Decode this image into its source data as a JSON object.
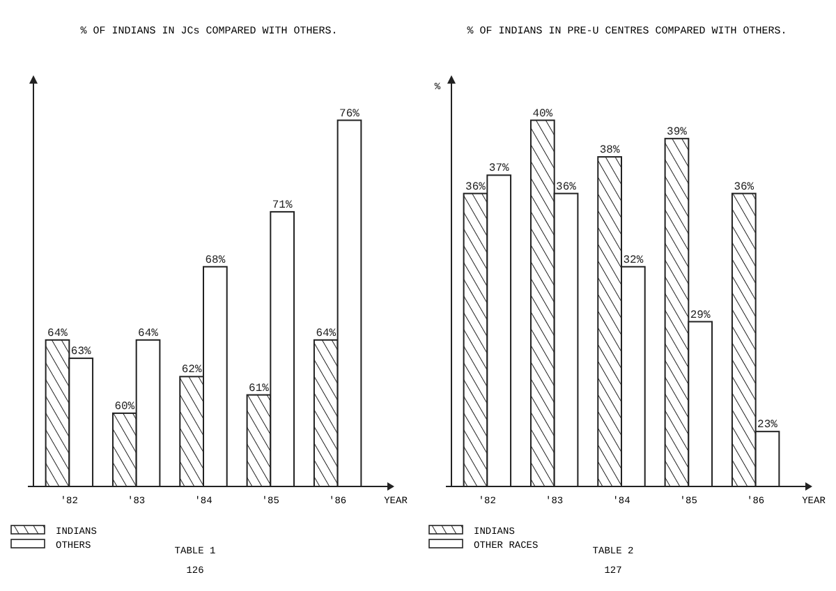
{
  "chart_data": [
    {
      "type": "bar",
      "title": "% OF INDIANS IN JCs COMPARED WITH OTHERS.",
      "xlabel": "YEAR",
      "categories": [
        "'82",
        "'83",
        "'84",
        "'85",
        "'86"
      ],
      "series": [
        {
          "name": "INDIANS",
          "color": "#222222",
          "values": [
            64,
            60,
            62,
            61,
            64
          ],
          "value_labels": [
            "64%",
            "60%",
            "62%",
            "61%",
            "64%"
          ]
        },
        {
          "name": "OTHERS",
          "color": "#ffffff",
          "values": [
            63,
            64,
            68,
            71,
            76
          ],
          "value_labels": [
            "63%",
            "64%",
            "68%",
            "71%",
            "76%"
          ]
        }
      ],
      "ylim": [
        56,
        78
      ],
      "tick_labels": "x",
      "legend": "bottom left",
      "annotations": [
        "TABLE 1",
        "126"
      ]
    },
    {
      "type": "bar",
      "title": "% OF INDIANS IN PRE-U CENTRES COMPARED WITH OTHERS.",
      "xlabel": "YEAR",
      "ylabel": "%",
      "categories": [
        "'82",
        "'83",
        "'84",
        "'85",
        "'86"
      ],
      "series": [
        {
          "name": "INDIANS",
          "color": "#222222",
          "values": [
            36,
            40,
            38,
            39,
            36
          ],
          "value_labels": [
            "36%",
            "40%",
            "38%",
            "39%",
            "36%"
          ]
        },
        {
          "name": "OTHER RACES",
          "color": "#ffffff",
          "values": [
            37,
            36,
            32,
            29,
            23
          ],
          "value_labels": [
            "37%",
            "36%",
            "32%",
            "29%",
            "23%"
          ]
        }
      ],
      "ylim": [
        20,
        42
      ],
      "tick_labels": "x",
      "legend": "bottom left",
      "annotations": [
        "TABLE 2",
        "127"
      ]
    }
  ]
}
